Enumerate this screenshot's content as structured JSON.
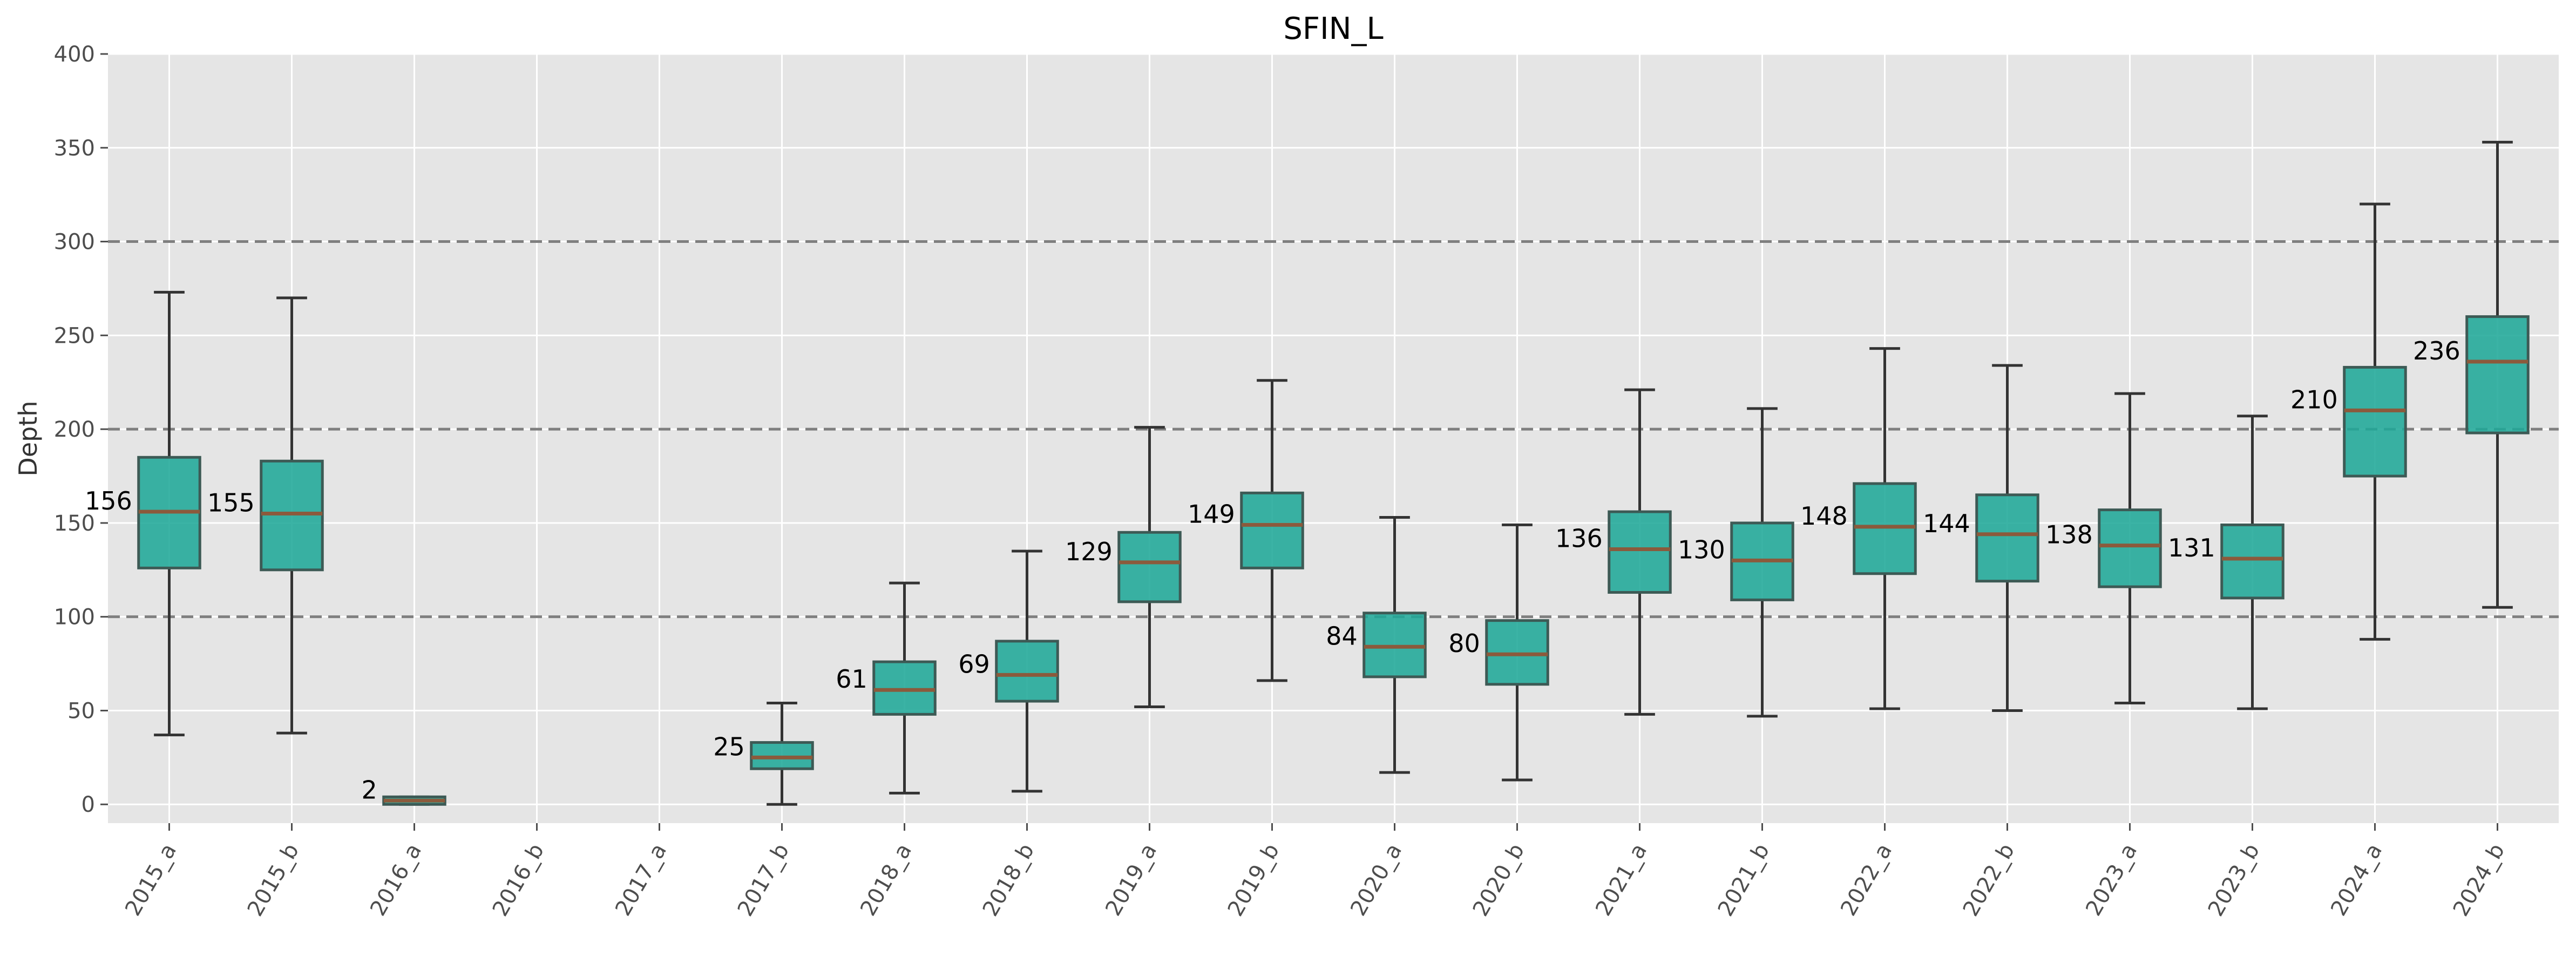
{
  "chart_data": {
    "type": "box",
    "title": "SFIN_L",
    "xlabel": "",
    "ylabel": "Depth",
    "ylim": [
      -10,
      400
    ],
    "yticks": [
      0,
      50,
      100,
      150,
      200,
      250,
      300,
      350,
      400
    ],
    "grid": true,
    "reference_lines": [
      100,
      200,
      300
    ],
    "colors": {
      "box_fill": "#20a898",
      "box_edge": "#3d5a55",
      "median": "#8b5a3c",
      "whisker": "#333333",
      "reference_line": "#7f7f7f",
      "plot_bg": "#e5e5e5",
      "grid": "#ffffff"
    },
    "categories": [
      "2015_a",
      "2015_b",
      "2016_a",
      "2016_b",
      "2017_a",
      "2017_b",
      "2018_a",
      "2018_b",
      "2019_a",
      "2019_b",
      "2020_a",
      "2020_b",
      "2021_a",
      "2021_b",
      "2022_a",
      "2022_b",
      "2023_a",
      "2023_b",
      "2024_a",
      "2024_b"
    ],
    "boxes": [
      {
        "whislo": 37,
        "q1": 126,
        "med": 156,
        "q3": 185,
        "whishi": 273,
        "label": "156"
      },
      {
        "whislo": 38,
        "q1": 125,
        "med": 155,
        "q3": 183,
        "whishi": 270,
        "label": "155"
      },
      {
        "whislo": 0,
        "q1": 0,
        "med": 2,
        "q3": 4,
        "whishi": 4,
        "label": "2"
      },
      null,
      null,
      {
        "whislo": 0,
        "q1": 19,
        "med": 25,
        "q3": 33,
        "whishi": 54,
        "label": "25"
      },
      {
        "whislo": 6,
        "q1": 48,
        "med": 61,
        "q3": 76,
        "whishi": 118,
        "label": "61"
      },
      {
        "whislo": 7,
        "q1": 55,
        "med": 69,
        "q3": 87,
        "whishi": 135,
        "label": "69"
      },
      {
        "whislo": 52,
        "q1": 108,
        "med": 129,
        "q3": 145,
        "whishi": 201,
        "label": "129"
      },
      {
        "whislo": 66,
        "q1": 126,
        "med": 149,
        "q3": 166,
        "whishi": 226,
        "label": "149"
      },
      {
        "whislo": 17,
        "q1": 68,
        "med": 84,
        "q3": 102,
        "whishi": 153,
        "label": "84"
      },
      {
        "whislo": 13,
        "q1": 64,
        "med": 80,
        "q3": 98,
        "whishi": 149,
        "label": "80"
      },
      {
        "whislo": 48,
        "q1": 113,
        "med": 136,
        "q3": 156,
        "whishi": 221,
        "label": "136"
      },
      {
        "whislo": 47,
        "q1": 109,
        "med": 130,
        "q3": 150,
        "whishi": 211,
        "label": "130"
      },
      {
        "whislo": 51,
        "q1": 123,
        "med": 148,
        "q3": 171,
        "whishi": 243,
        "label": "148"
      },
      {
        "whislo": 50,
        "q1": 119,
        "med": 144,
        "q3": 165,
        "whishi": 234,
        "label": "144"
      },
      {
        "whislo": 54,
        "q1": 116,
        "med": 138,
        "q3": 157,
        "whishi": 219,
        "label": "138"
      },
      {
        "whislo": 51,
        "q1": 110,
        "med": 131,
        "q3": 149,
        "whishi": 207,
        "label": "131"
      },
      {
        "whislo": 88,
        "q1": 175,
        "med": 210,
        "q3": 233,
        "whishi": 320,
        "label": "210"
      },
      {
        "whislo": 105,
        "q1": 198,
        "med": 236,
        "q3": 260,
        "whishi": 353,
        "label": "236"
      }
    ]
  }
}
